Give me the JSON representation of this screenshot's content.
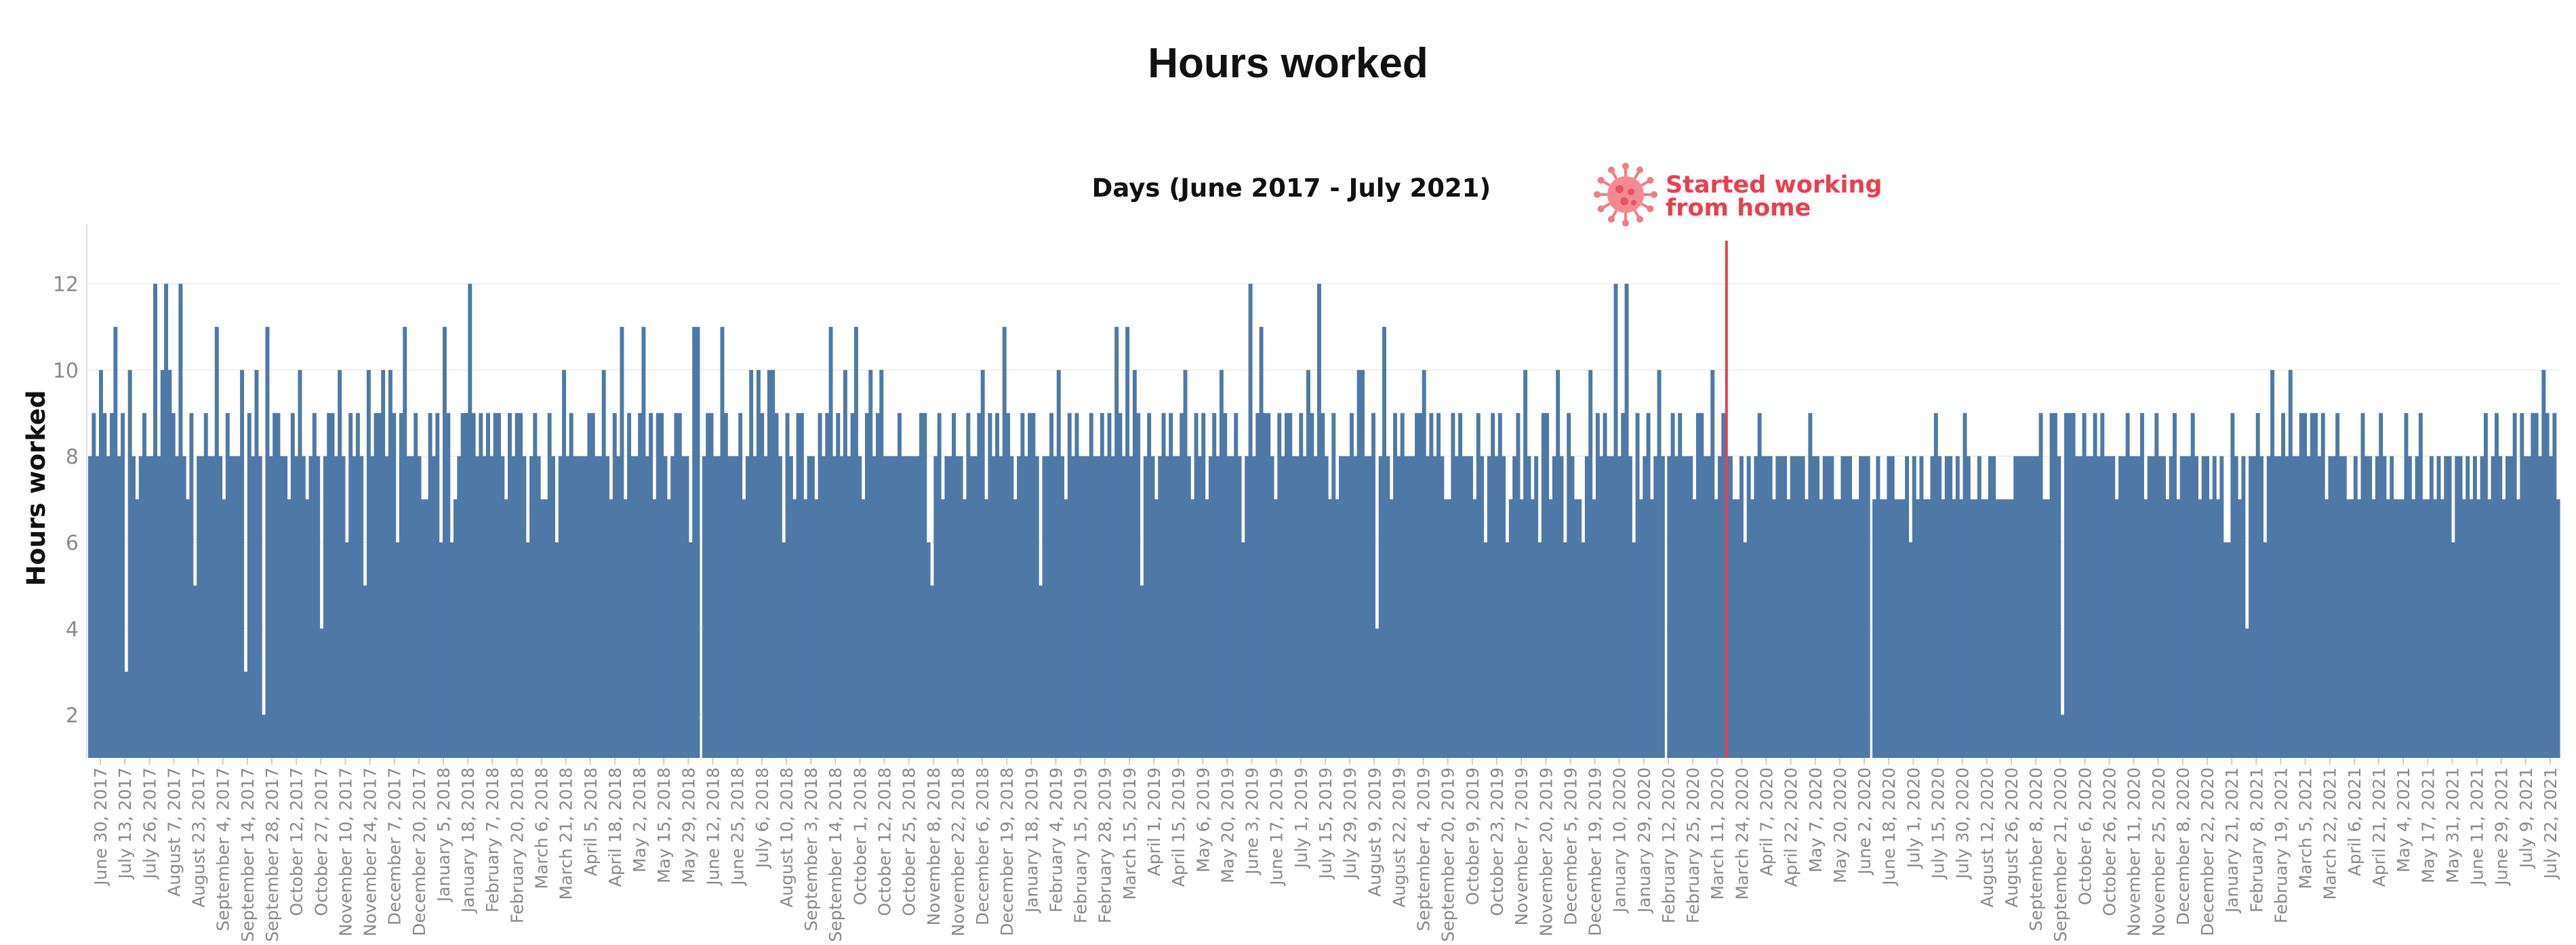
{
  "title": "Hours worked",
  "chart_data": {
    "type": "bar",
    "title": "Hours worked",
    "xlabel": "Days (June 2017 - July 2021)",
    "ylabel": "Hours worked",
    "ylim": [
      1,
      13
    ],
    "y_ticks": [
      2,
      4,
      6,
      8,
      10,
      12
    ],
    "grid": true,
    "bar_color": "#4e79a7",
    "start_date": "2017-06-27",
    "end_date": "2021-07-28",
    "x_tick_labels": [
      "June 30, 2017",
      "July 13, 2017",
      "July 26, 2017",
      "August 7, 2017",
      "August 23, 2017",
      "September 4, 2017",
      "September 14, 2017",
      "September 28, 2017",
      "October 12, 2017",
      "October 27, 2017",
      "November 10, 2017",
      "November 24, 2017",
      "December 7, 2017",
      "December 20, 2017",
      "January 5, 2018",
      "January 18, 2018",
      "February 7, 2018",
      "February 20, 2018",
      "March 6, 2018",
      "March 21, 2018",
      "April 5, 2018",
      "April 18, 2018",
      "May 2, 2018",
      "May 15, 2018",
      "May 29, 2018",
      "June 12, 2018",
      "June 25, 2018",
      "July 6, 2018",
      "August 10, 2018",
      "September 3, 2018",
      "September 14, 2018",
      "October 1, 2018",
      "October 12, 2018",
      "October 25, 2018",
      "November 8, 2018",
      "November 22, 2018",
      "December 6, 2018",
      "December 19, 2018",
      "January 18, 2019",
      "February 4, 2019",
      "February 15, 2019",
      "February 28, 2019",
      "March 15, 2019",
      "April 1, 2019",
      "April 15, 2019",
      "May 6, 2019",
      "May 20, 2019",
      "June 3, 2019",
      "June 17, 2019",
      "July 1, 2019",
      "July 15, 2019",
      "July 29, 2019",
      "August 9, 2019",
      "August 22, 2019",
      "September 4, 2019",
      "September 20, 2019",
      "October 9, 2019",
      "October 23, 2019",
      "November 7, 2019",
      "November 20, 2019",
      "December 5, 2019",
      "December 19, 2019",
      "January 10, 2020",
      "January 29, 2020",
      "February 12, 2020",
      "February 25, 2020",
      "March 11, 2020",
      "March 24, 2020",
      "April 7, 2020",
      "April 22, 2020",
      "May 7, 2020",
      "May 20, 2020",
      "June 2, 2020",
      "June 18, 2020",
      "July 1, 2020",
      "July 15, 2020",
      "July 30, 2020",
      "August 12, 2020",
      "August 26, 2020",
      "September 8, 2020",
      "September 21, 2020",
      "October 6, 2020",
      "October 26, 2020",
      "November 11, 2020",
      "November 25, 2020",
      "December 8, 2020",
      "December 22, 2020",
      "January 21, 2021",
      "February 8, 2021",
      "February 19, 2021",
      "March 5, 2021",
      "March 22, 2021",
      "April 6, 2021",
      "April 21, 2021",
      "May 4, 2021",
      "May 17, 2021",
      "May 31, 2021",
      "June 11, 2021",
      "June 29, 2021",
      "July 9, 2021",
      "July 22, 2021"
    ],
    "segments": [
      [
        8,
        9,
        8,
        10,
        9,
        8,
        9,
        11,
        8,
        9,
        3,
        10,
        8,
        7,
        8,
        9,
        8,
        8,
        12,
        8,
        10,
        12,
        10,
        9,
        8,
        12,
        8,
        7,
        9,
        5,
        8,
        8,
        9,
        8,
        8,
        11,
        8,
        7,
        9,
        8,
        8,
        8,
        10,
        3,
        9,
        8,
        10,
        8,
        2,
        11,
        8,
        9,
        9,
        8,
        8,
        7,
        9,
        8,
        10,
        8,
        7,
        8,
        9,
        8,
        4,
        8,
        9,
        9,
        8,
        10,
        8,
        6,
        9,
        8,
        9,
        8,
        5,
        10,
        8,
        9,
        9,
        10,
        8,
        10,
        9,
        6,
        9,
        11,
        8,
        8,
        9,
        8,
        7,
        7,
        9,
        8,
        9,
        6,
        11,
        9,
        6,
        7,
        8,
        9,
        9,
        12,
        9,
        8,
        9,
        8,
        9,
        8,
        9,
        9,
        8,
        7,
        9,
        8,
        9,
        9,
        8,
        6,
        8,
        9,
        8,
        7,
        7,
        9,
        8,
        6,
        8,
        10,
        8,
        9,
        8,
        8,
        8,
        8,
        9,
        9,
        8,
        8,
        10,
        8,
        7,
        9,
        8,
        11,
        7,
        9,
        8,
        8,
        9,
        11,
        8,
        9,
        7,
        9,
        9,
        8,
        7,
        8,
        9,
        9,
        8,
        8,
        6,
        11,
        11
      ],
      [
        8,
        9,
        9,
        8,
        8,
        11,
        9,
        8,
        8,
        8,
        9,
        7,
        8,
        10,
        8,
        10,
        9,
        8,
        10,
        10,
        9,
        8,
        6,
        9,
        8,
        7,
        9,
        9,
        7,
        8,
        8,
        7,
        9,
        8,
        9,
        11,
        8,
        9,
        8,
        10,
        8,
        9,
        11,
        8,
        7,
        9,
        10,
        8,
        9,
        10,
        8,
        8,
        8,
        8,
        9,
        8,
        8,
        8,
        8,
        8,
        9,
        9,
        6,
        5,
        8,
        9,
        7,
        8,
        8,
        9,
        8,
        8,
        7,
        9,
        8,
        8,
        9,
        10,
        7,
        9,
        8,
        9,
        8,
        11,
        9,
        8,
        7,
        8,
        9,
        8,
        9,
        9,
        8,
        5,
        8,
        8,
        9,
        8,
        10,
        8,
        7,
        9,
        8,
        9,
        8,
        8,
        8,
        9,
        8,
        8,
        9,
        8,
        9,
        8,
        11,
        9,
        8,
        11,
        8,
        10,
        9,
        5,
        8,
        9,
        8,
        7,
        8,
        9,
        8,
        9,
        8,
        8,
        9,
        10,
        8,
        7,
        9,
        8,
        9,
        7,
        8,
        9,
        8,
        10,
        9,
        8,
        8,
        9,
        8,
        6,
        8,
        12,
        8,
        9,
        11,
        9,
        9,
        8,
        7,
        9,
        8,
        9,
        9,
        8,
        8,
        9,
        8,
        10,
        9,
        8,
        12,
        9,
        8,
        7,
        9,
        7,
        8,
        8,
        8,
        9,
        8,
        10,
        10,
        8,
        8,
        9,
        4,
        8,
        11,
        8,
        7,
        9,
        8,
        9,
        8,
        8,
        8,
        9,
        9,
        10,
        8,
        9,
        8,
        9,
        8,
        7,
        7,
        9,
        8,
        9,
        8,
        8,
        8,
        7,
        9,
        8,
        6,
        8,
        9,
        8,
        9,
        8,
        6,
        7,
        8,
        9,
        7,
        10,
        8,
        7,
        8,
        6,
        9,
        9,
        7,
        8,
        10,
        8,
        6,
        9,
        8,
        7,
        7,
        6,
        8,
        10,
        7,
        9,
        8,
        9,
        8,
        8,
        12,
        8,
        9,
        12,
        8,
        6,
        9,
        7,
        8,
        9,
        7,
        8,
        10,
        8
      ],
      [
        8,
        9,
        8,
        9,
        8,
        8,
        8,
        7,
        9,
        9,
        8,
        8,
        10,
        7,
        8,
        9,
        8,
        8,
        7,
        7,
        8,
        6,
        8,
        7,
        8,
        9,
        8,
        8,
        8,
        7,
        8,
        8,
        8,
        7,
        8,
        8,
        8,
        8,
        7,
        9,
        8,
        8,
        7,
        8,
        8,
        8,
        7,
        7,
        8,
        8,
        8,
        7,
        7,
        8,
        8,
        8
      ],
      [
        7,
        8,
        7,
        7,
        8,
        8,
        7,
        7,
        7,
        8,
        6,
        8,
        7,
        8,
        7,
        7,
        8,
        9,
        8,
        7,
        8,
        8,
        7,
        8,
        7,
        9,
        8,
        7,
        7,
        8,
        7,
        7,
        8,
        8,
        7,
        7,
        7,
        7,
        7,
        8,
        8,
        8,
        8,
        8,
        8,
        8,
        9,
        7,
        7,
        9,
        9,
        8,
        2,
        9,
        9,
        9,
        8,
        8,
        9,
        8,
        8,
        9,
        8,
        9,
        8,
        8,
        8,
        7,
        8,
        8,
        9,
        8,
        8,
        8,
        9,
        7,
        8,
        8,
        9,
        8,
        8,
        7,
        8,
        9,
        7,
        8,
        8,
        8,
        9,
        8,
        7,
        8,
        8,
        7,
        8,
        7,
        8,
        6,
        6,
        9,
        8,
        7,
        8,
        4,
        8,
        8,
        9,
        8,
        6,
        8,
        10,
        8,
        8,
        9,
        8,
        10,
        8,
        8,
        9,
        9,
        8,
        9,
        9,
        8,
        9,
        7,
        8,
        8,
        9,
        8,
        8,
        7,
        7,
        8,
        7,
        9,
        8,
        8,
        7,
        8,
        9,
        8,
        7,
        8,
        7,
        7,
        7,
        9,
        8,
        7,
        8,
        9,
        7,
        7,
        8,
        7,
        8,
        7,
        8,
        8,
        6,
        8,
        8,
        7,
        8,
        7,
        8,
        7,
        8,
        9,
        7,
        8,
        9,
        8,
        7,
        8,
        8,
        9,
        7,
        9,
        8,
        8,
        9,
        9,
        8,
        10,
        9,
        8,
        9,
        7
      ]
    ],
    "event_date": "2020-03-12",
    "event_label_line1": "Started working",
    "event_label_line2": "from home",
    "event_color": "#e8404f",
    "event_icon": "virus-icon"
  }
}
